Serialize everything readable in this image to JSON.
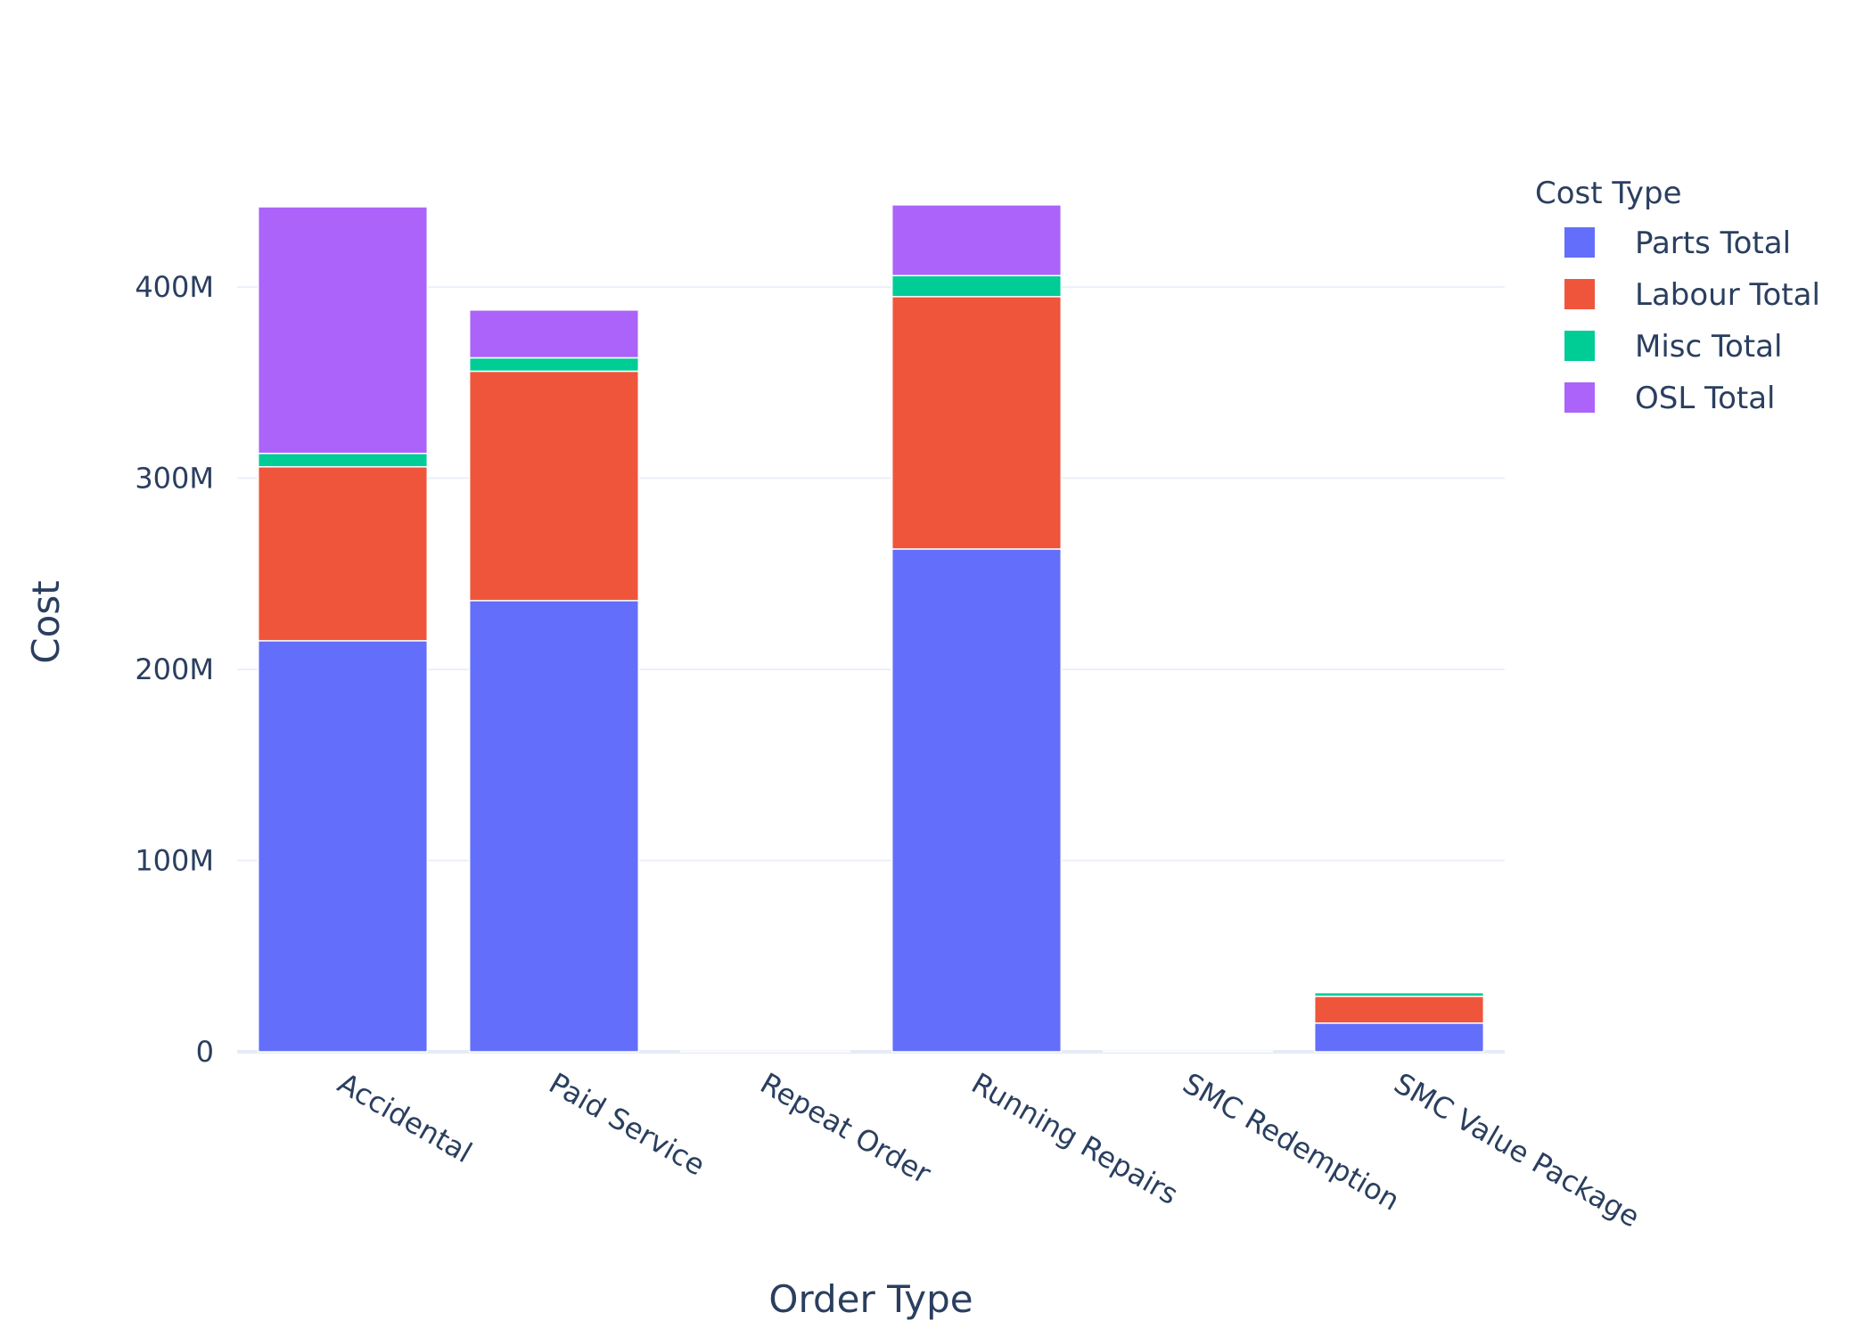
{
  "chart_data": {
    "type": "bar",
    "barmode": "stack",
    "title": "",
    "xlabel": "Order Type",
    "ylabel": "Cost",
    "ylim": [
      0,
      442000000
    ],
    "yticks": [
      0,
      100000000,
      200000000,
      300000000,
      400000000
    ],
    "ytick_labels": [
      "0",
      "100M",
      "200M",
      "300M",
      "400M"
    ],
    "grid": true,
    "legend_title": "Cost Type",
    "legend_position": "top-right",
    "categories": [
      "Accidental",
      "Paid Service",
      "Repeat Order",
      "Running Repairs",
      "SMC Redemption",
      "SMC Value Package"
    ],
    "series": [
      {
        "name": "Parts Total",
        "color": "#636efa",
        "values": [
          215000000,
          236000000,
          150000,
          263000000,
          200000,
          15000000
        ]
      },
      {
        "name": "Labour Total",
        "color": "#ef553b",
        "values": [
          91000000,
          120000000,
          80000,
          132000000,
          100000,
          14000000
        ]
      },
      {
        "name": "Misc Total",
        "color": "#00cc96",
        "values": [
          7000000,
          7000000,
          10000,
          11000000,
          10000,
          2000000
        ]
      },
      {
        "name": "OSL Total",
        "color": "#ab63fa",
        "values": [
          129000000,
          25000000,
          10000,
          37000000,
          10000,
          500000
        ]
      }
    ]
  }
}
